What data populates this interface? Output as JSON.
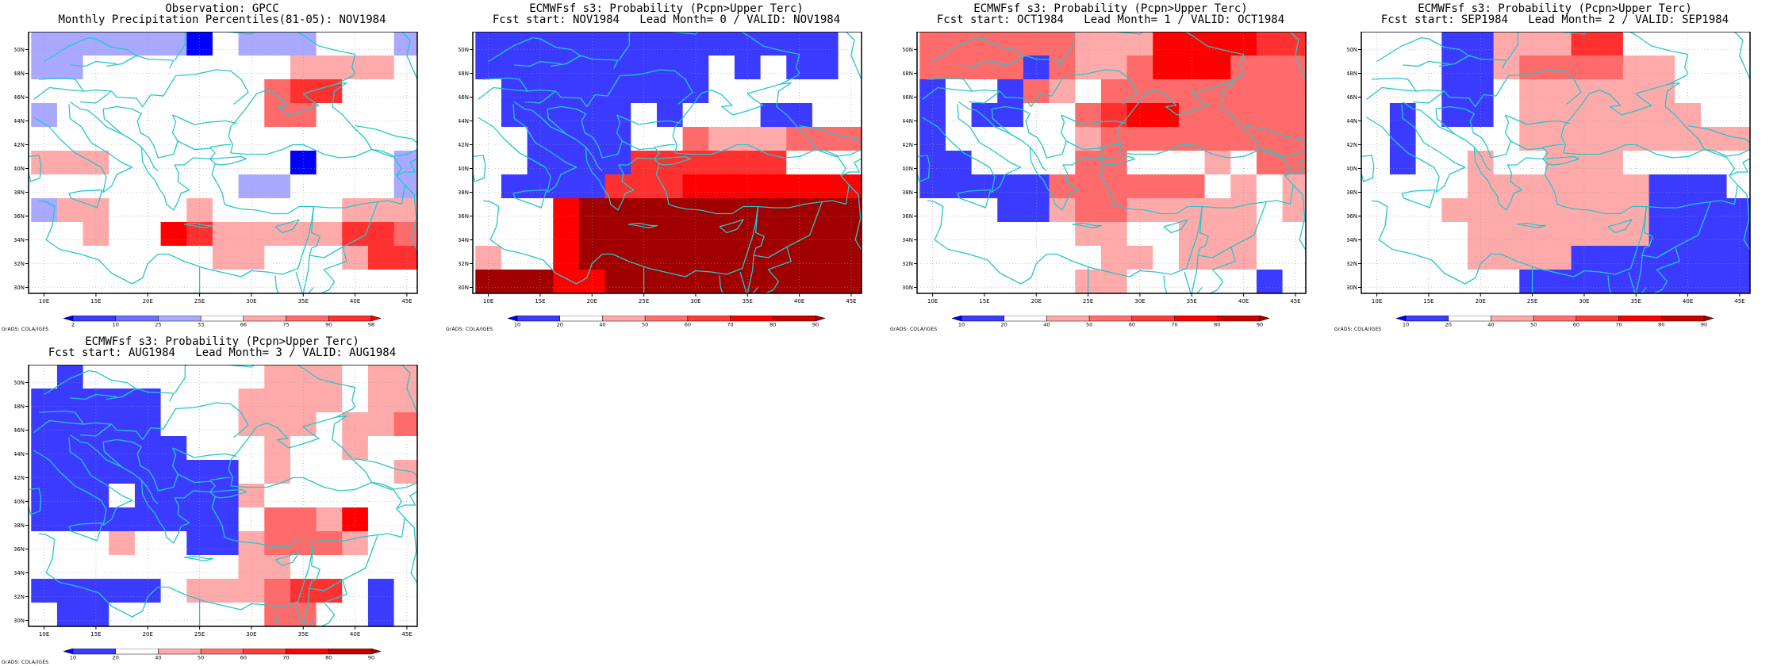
{
  "figure": {
    "credit": "GrADS: COLA/IGES",
    "lon_ticks": [
      "10E",
      "15E",
      "20E",
      "25E",
      "30E",
      "35E",
      "40E",
      "45E"
    ],
    "lat_ticks": [
      "30N",
      "32N",
      "34N",
      "36N",
      "38N",
      "40N",
      "42N",
      "44N",
      "46N",
      "48N",
      "50N"
    ]
  },
  "colorbars": {
    "percentile": {
      "labels": [
        "2",
        "10",
        "25",
        "33",
        "66",
        "75",
        "90",
        "98"
      ],
      "colors": [
        "#0000ff",
        "#3b3bff",
        "#6f6fff",
        "#a9a9ff",
        "#ffffff",
        "#ffaaaa",
        "#ff6a6a",
        "#ff3030",
        "#ff0000"
      ]
    },
    "probability": {
      "labels": [
        "10",
        "20",
        "40",
        "50",
        "60",
        "70",
        "80",
        "90"
      ],
      "colors": [
        "#0000ff",
        "#3b3bff",
        "#ffffff",
        "#ffaaaa",
        "#ff7070",
        "#ff3c3c",
        "#ff0000",
        "#c80000",
        "#a00000"
      ]
    }
  },
  "colors": {
    "map_line": "#26c6c9",
    "grid": "#999999",
    "category_fill": {
      "0": "#0000ff",
      "1": "#3b3bff",
      "2": "#6f6fff",
      "3": "#a9a9ff",
      "4": "#ffffff",
      "5": "#ffaaaa",
      "6": "#ff6a6a",
      "7": "#ff3030",
      "8": "#ff0000",
      "9": "#a00000"
    }
  },
  "chart_data": [
    {
      "type": "heatmap",
      "panel": "observation",
      "title": "Observation: GPCC",
      "subtitle": "Monthly Precipitation Percentiles(81-05): NOV1984",
      "colorbar": "percentile",
      "xlim": [
        8.5,
        46
      ],
      "ylim": [
        29.5,
        51.5
      ],
      "cols": 15,
      "rows": 11,
      "cell_lon_start": 8.75,
      "cell_lat_start": 29.5,
      "cell_size": [
        2.5,
        2
      ],
      "grid_rows_north_to_south": [
        "333333043334443",
        "334444444455554",
        "444444444677444",
        "344444444664444",
        "444444444444444",
        "555444444404443",
        "444444443344443",
        "355444544444555",
        "445448755555776",
        "444444455444577",
        "444444444444444"
      ]
    },
    {
      "type": "heatmap",
      "panel": "lead0",
      "title": "ECMWFsf s3: Probability (Pcpn>Upper Terc)",
      "subtitle": "Fcst start: NOV1984   Lead Month= 0 / VALID: NOV1984",
      "colorbar": "probability",
      "xlim": [
        8.5,
        46
      ],
      "ylim": [
        29.5,
        51.5
      ],
      "cols": 15,
      "rows": 11,
      "grid_rows_north_to_south": [
        "111111111111114",
        "111111111414114",
        "411111111444444",
        "411111414441144",
        "441111446555666",
        "441111777777444",
        "411117778888888",
        "444899999999999",
        "444899999999999",
        "544899999999999",
        "999889999999999"
      ]
    },
    {
      "type": "heatmap",
      "panel": "lead1",
      "title": "ECMWFsf s3: Probability (Pcpn>Upper Terc)",
      "subtitle": "Fcst start: OCT1984   Lead Month= 1 / VALID: OCT1984",
      "colorbar": "probability",
      "xlim": [
        8.5,
        46
      ],
      "ylim": [
        29.5,
        51.5
      ],
      "cols": 15,
      "rows": 11,
      "grid_rows_north_to_south": [
        "666666555888877",
        "666616556888666",
        "144165466666666",
        "141144678866666",
        "144444566666666",
        "114444664445466",
        "111116666664545",
        "444115665555545",
        "444444554455544",
        "444444455455544",
        "444444554444414"
      ]
    },
    {
      "type": "heatmap",
      "panel": "lead2",
      "title": "ECMWFsf s3: Probability (Pcpn>Upper Terc)",
      "subtitle": "Fcst start: SEP1984   Lead Month= 2 / VALID: SEP1984",
      "colorbar": "probability",
      "xlim": [
        8.5,
        46
      ],
      "ylim": [
        29.5,
        51.5
      ],
      "cols": 15,
      "rows": 11,
      "grid_rows_north_to_south": [
        "444115557744444",
        "444115666655444",
        "444114555555444",
        "414114555555544",
        "414444555555555",
        "414454455544444",
        "444455555551114",
        "444555555551111",
        "444455555551111",
        "444455551111111",
        "444444111111111"
      ]
    },
    {
      "type": "heatmap",
      "panel": "lead3",
      "title": "ECMWFsf s3: Probability (Pcpn>Upper Terc)",
      "subtitle": "Fcst start: AUG1984   Lead Month= 3 / VALID: AUG1984",
      "colorbar": "probability",
      "xlim": [
        8.5,
        46
      ],
      "ylim": [
        29.5,
        51.5
      ],
      "cols": 15,
      "rows": 11,
      "grid_rows_north_to_south": [
        "414444444555455",
        "111114445555455",
        "111114445554556",
        "111111444544544",
        "111111114544445",
        "111411115444444",
        "111111114665844",
        "444544115666544",
        "444444445544444",
        "111114555677414",
        "411444444664414"
      ]
    }
  ]
}
